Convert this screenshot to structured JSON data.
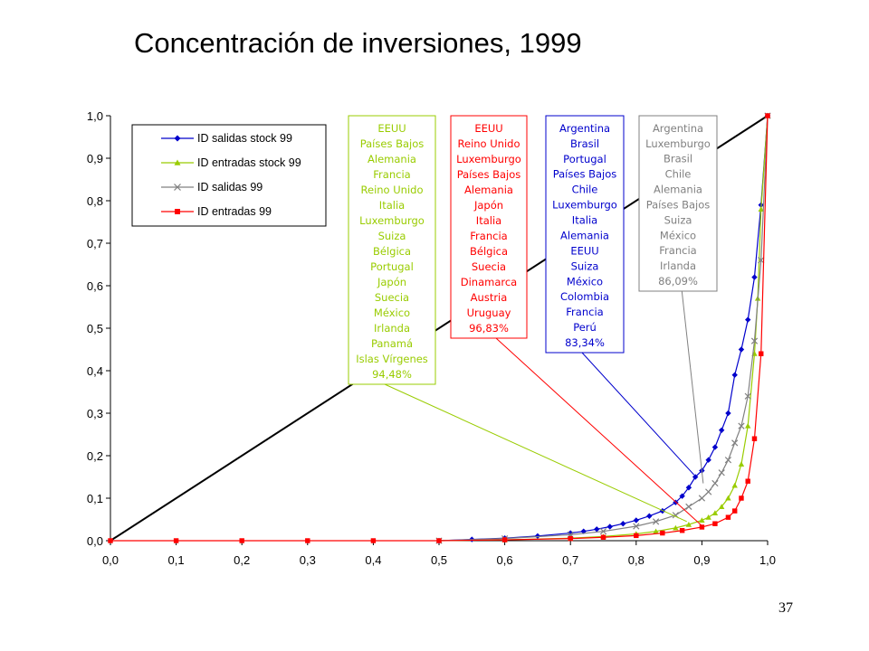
{
  "slide": {
    "title": "Concentración de inversiones, 1999",
    "page_number": "37"
  },
  "chart_data": {
    "type": "line",
    "title": "Concentración de inversiones, 1999",
    "xlabel": "",
    "ylabel": "",
    "xlim": [
      0,
      1
    ],
    "ylim": [
      0,
      1
    ],
    "x_ticks": [
      "0,0",
      "0,1",
      "0,2",
      "0,3",
      "0,4",
      "0,5",
      "0,6",
      "0,7",
      "0,8",
      "0,9",
      "1,0"
    ],
    "y_ticks": [
      "0,0",
      "0,1",
      "0,2",
      "0,3",
      "0,4",
      "0,5",
      "0,6",
      "0,7",
      "0,8",
      "0,9",
      "1,0"
    ],
    "grid": false,
    "legend_position": "top-left",
    "colors": {
      "diagonal": "#000000",
      "salidas_stock": "#0000CC",
      "entradas_stock": "#99CC00",
      "salidas": "#808080",
      "entradas": "#FF0000"
    },
    "series": [
      {
        "name": "ID salidas stock 99",
        "marker": "diamond",
        "color": "#0000CC",
        "x": [
          0.5,
          0.55,
          0.6,
          0.65,
          0.7,
          0.72,
          0.74,
          0.76,
          0.78,
          0.8,
          0.82,
          0.84,
          0.86,
          0.87,
          0.88,
          0.89,
          0.9,
          0.91,
          0.92,
          0.93,
          0.94,
          0.95,
          0.96,
          0.97,
          0.98,
          0.99,
          1.0
        ],
        "y": [
          0.0,
          0.003,
          0.006,
          0.011,
          0.018,
          0.022,
          0.027,
          0.033,
          0.04,
          0.048,
          0.058,
          0.07,
          0.09,
          0.105,
          0.125,
          0.15,
          0.165,
          0.19,
          0.22,
          0.26,
          0.3,
          0.39,
          0.45,
          0.52,
          0.62,
          0.79,
          1.0
        ]
      },
      {
        "name": "ID entradas stock 99",
        "marker": "triangle",
        "color": "#99CC00",
        "x": [
          0.5,
          0.6,
          0.7,
          0.75,
          0.8,
          0.83,
          0.86,
          0.88,
          0.9,
          0.91,
          0.92,
          0.93,
          0.94,
          0.95,
          0.96,
          0.97,
          0.98,
          0.985,
          0.99,
          1.0
        ],
        "y": [
          0.0,
          0.002,
          0.006,
          0.01,
          0.016,
          0.022,
          0.03,
          0.038,
          0.048,
          0.055,
          0.065,
          0.08,
          0.1,
          0.13,
          0.18,
          0.27,
          0.44,
          0.57,
          0.78,
          1.0
        ]
      },
      {
        "name": "ID salidas 99",
        "marker": "x",
        "color": "#808080",
        "x": [
          0.5,
          0.6,
          0.7,
          0.75,
          0.8,
          0.83,
          0.86,
          0.88,
          0.9,
          0.91,
          0.92,
          0.93,
          0.94,
          0.95,
          0.96,
          0.97,
          0.98,
          0.99,
          1.0
        ],
        "y": [
          0.0,
          0.005,
          0.014,
          0.022,
          0.034,
          0.045,
          0.06,
          0.08,
          0.1,
          0.115,
          0.135,
          0.16,
          0.19,
          0.23,
          0.27,
          0.34,
          0.47,
          0.66,
          1.0
        ]
      },
      {
        "name": "ID entradas 99",
        "marker": "square",
        "color": "#FF0000",
        "x": [
          0.0,
          0.1,
          0.2,
          0.3,
          0.4,
          0.5,
          0.6,
          0.7,
          0.75,
          0.8,
          0.84,
          0.87,
          0.9,
          0.92,
          0.94,
          0.95,
          0.96,
          0.97,
          0.98,
          0.99,
          1.0
        ],
        "y": [
          0.0,
          0.0,
          0.0,
          0.0,
          0.0,
          0.0,
          0.002,
          0.005,
          0.008,
          0.012,
          0.018,
          0.024,
          0.032,
          0.04,
          0.055,
          0.07,
          0.1,
          0.14,
          0.24,
          0.44,
          1.0
        ]
      }
    ],
    "diagonal": {
      "x": [
        0,
        1
      ],
      "y": [
        0,
        1
      ]
    },
    "annotation_boxes": [
      {
        "id": "entradas_stock",
        "color": "#99CC00",
        "text_color": "#99CC00",
        "lines": [
          "EEUU",
          "Países Bajos",
          "Alemania",
          "Francia",
          "Reino Unido",
          "Italia",
          "Luxemburgo",
          "Suiza",
          "Bélgica",
          "Portugal",
          "Japón",
          "Suecia",
          "México",
          "Irlanda",
          "Panamá",
          "Islas Vírgenes",
          "94,48%"
        ],
        "points_to": [
          0.877,
          0.045
        ]
      },
      {
        "id": "entradas",
        "color": "#FF0000",
        "text_color": "#FF0000",
        "lines": [
          "EEUU",
          "Reino Unido",
          "Luxemburgo",
          "Países Bajos",
          "Alemania",
          "Japón",
          "Italia",
          "Francia",
          "Bélgica",
          "Suecia",
          "Dinamarca",
          "Austria",
          "Uruguay",
          "96,83%"
        ],
        "points_to": [
          0.9,
          0.035
        ]
      },
      {
        "id": "salidas_stock",
        "color": "#0000CC",
        "text_color": "#0000CC",
        "lines": [
          "Argentina",
          "Brasil",
          "Portugal",
          "Países Bajos",
          "Chile",
          "Luxemburgo",
          "Italia",
          "Alemania",
          "EEUU",
          "Suiza",
          "México",
          "Colombia",
          "Francia",
          "Perú",
          "83,34%"
        ],
        "points_to": [
          0.888,
          0.155
        ]
      },
      {
        "id": "salidas",
        "color": "#808080",
        "text_color": "#808080",
        "lines": [
          "Argentina",
          "Luxemburgo",
          "Brasil",
          "Chile",
          "Alemania",
          "Países Bajos",
          "Suiza",
          "México",
          "Francia",
          "Irlanda",
          "86,09%"
        ],
        "points_to": [
          0.902,
          0.135
        ]
      }
    ]
  }
}
